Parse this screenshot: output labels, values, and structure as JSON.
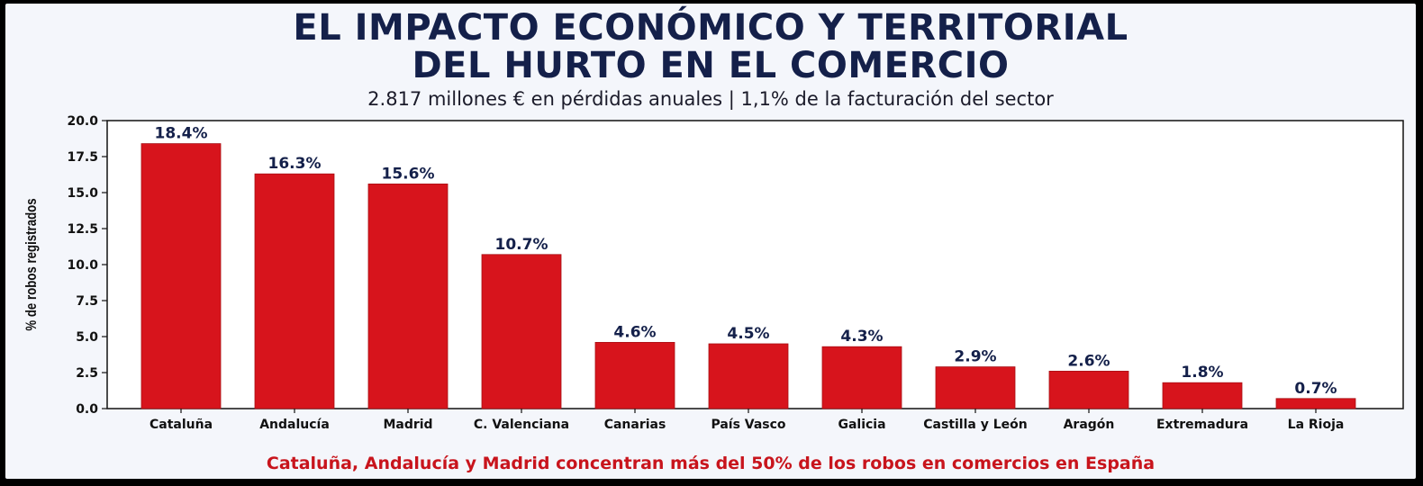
{
  "title": {
    "line1": "EL IMPACTO ECONÓMICO Y TERRITORIAL",
    "line2": "DEL HURTO EN EL COMERCIO"
  },
  "subtitle": "2.817 millones € en pérdidas anuales | 1,1% de la facturación del sector",
  "footer": "Cataluña, Andalucía y Madrid concentran más del 50% de los robos en comercios en España",
  "colors": {
    "bar": "#d7141c",
    "title": "#14204a",
    "footer": "#c8141c",
    "background": "#f4f6fb",
    "frame": "#000000"
  },
  "chart_data": {
    "type": "bar",
    "title": "",
    "xlabel": "",
    "ylabel": "% de robos registrados",
    "ylim": [
      0,
      20
    ],
    "yticks": [
      "0.0",
      "2.5",
      "5.0",
      "7.5",
      "10.0",
      "12.5",
      "15.0",
      "17.5",
      "20.0"
    ],
    "categories": [
      "Cataluña",
      "Andalucía",
      "Madrid",
      "C. Valenciana",
      "Canarias",
      "País Vasco",
      "Galicia",
      "Castilla y León",
      "Aragón",
      "Extremadura",
      "La Rioja"
    ],
    "values": [
      18.4,
      16.3,
      15.6,
      10.7,
      4.6,
      4.5,
      4.3,
      2.9,
      2.6,
      1.8,
      0.7
    ],
    "data_labels": [
      "18.4%",
      "16.3%",
      "15.6%",
      "10.7%",
      "4.6%",
      "4.5%",
      "4.3%",
      "2.9%",
      "2.6%",
      "1.8%",
      "0.7%"
    ],
    "grid": false,
    "legend": "none"
  }
}
